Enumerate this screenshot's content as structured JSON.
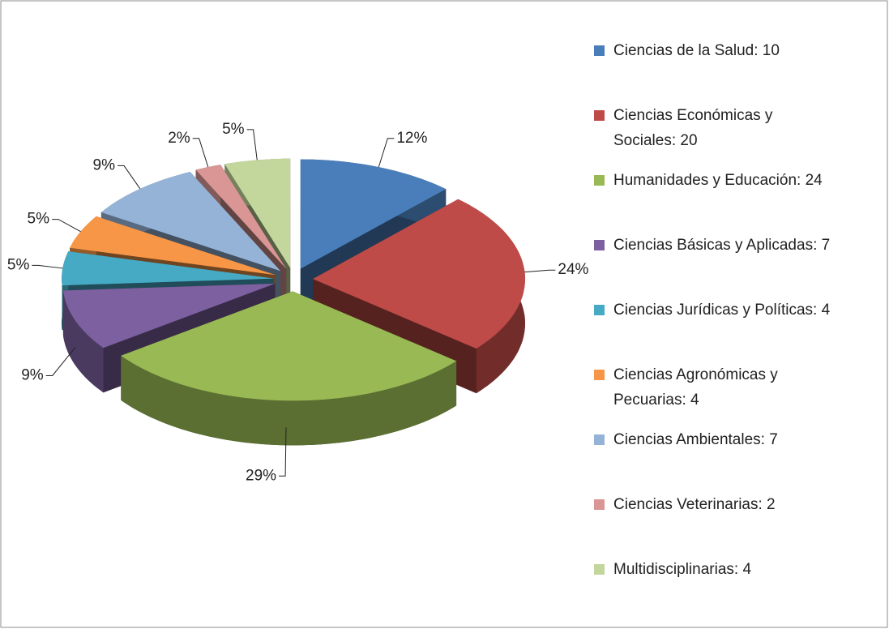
{
  "chart_data": {
    "type": "pie3d",
    "categories": [
      "Ciencias de la Salud: 10",
      "Ciencias Económicas y Sociales: 20",
      "Humanidades y Educación: 24",
      "Ciencias Básicas y Aplicadas: 7",
      "Ciencias Jurídicas y Políticas: 4",
      "Ciencias Agronómicas y Pecuarias: 4",
      "Ciencias Ambientales: 7",
      "Ciencias Veterinarias: 2",
      "Multidisciplinarias: 4"
    ],
    "values": [
      12,
      24,
      29,
      9,
      5,
      5,
      9,
      2,
      5
    ],
    "value_labels": [
      "12%",
      "24%",
      "29%",
      "9%",
      "5%",
      "5%",
      "9%",
      "2%",
      "5%"
    ],
    "colors": [
      "#4a7ebb",
      "#be4b48",
      "#98b954",
      "#7d60a0",
      "#46aac5",
      "#f79646",
      "#95b3d7",
      "#d99694",
      "#c3d69b"
    ],
    "legend": "right"
  }
}
